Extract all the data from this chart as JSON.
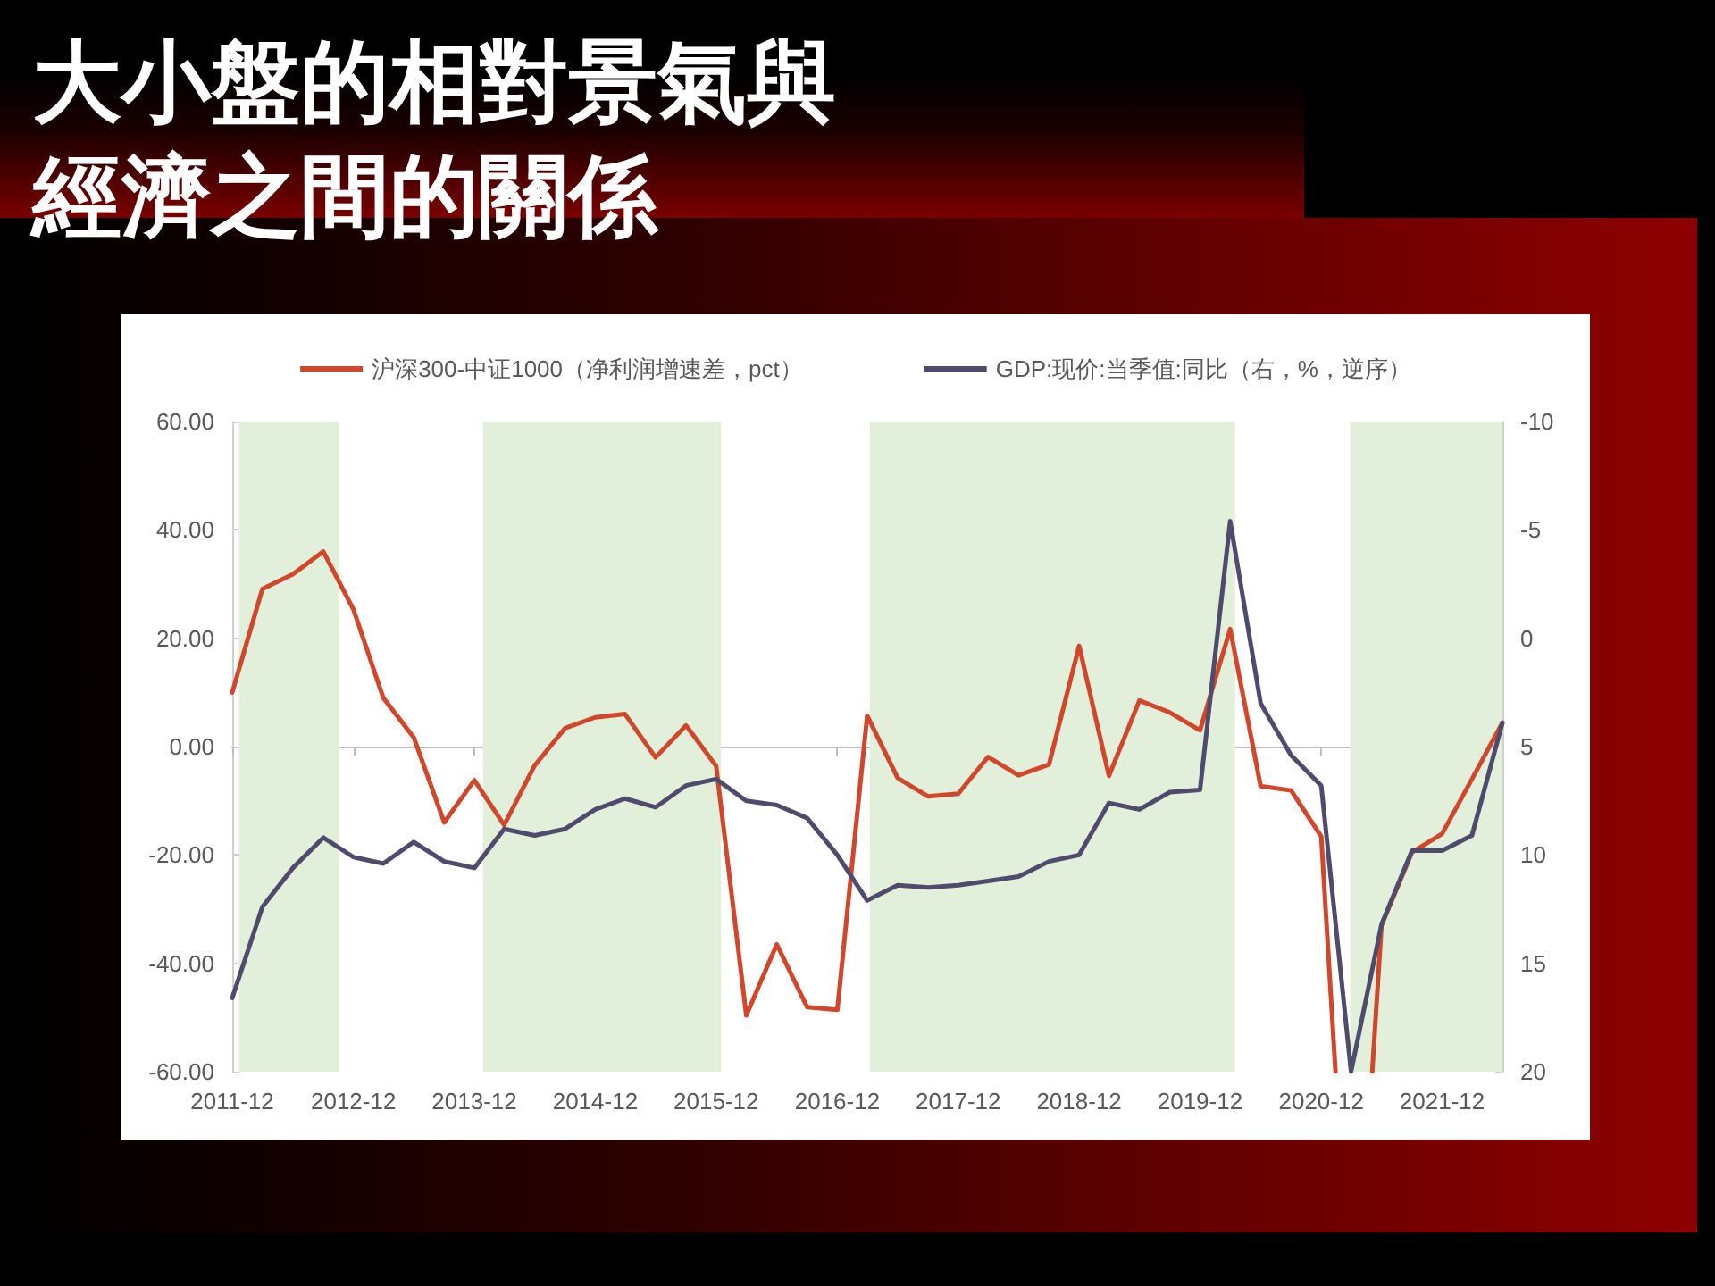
{
  "chart_data": {
    "type": "line",
    "title": "大小盤的相對景氣與經濟之間的關係",
    "x": [
      "2011-12",
      "2012-03",
      "2012-06",
      "2012-09",
      "2012-12",
      "2013-03",
      "2013-06",
      "2013-09",
      "2013-12",
      "2014-03",
      "2014-06",
      "2014-09",
      "2014-12",
      "2015-03",
      "2015-06",
      "2015-09",
      "2015-12",
      "2016-03",
      "2016-06",
      "2016-09",
      "2016-12",
      "2017-03",
      "2017-06",
      "2017-09",
      "2017-12",
      "2018-03",
      "2018-06",
      "2018-09",
      "2018-12",
      "2019-03",
      "2019-06",
      "2019-09",
      "2019-12",
      "2020-03",
      "2020-06",
      "2020-09",
      "2020-12",
      "2021-03",
      "2021-06",
      "2021-09",
      "2021-12",
      "2022-03",
      "2022-06"
    ],
    "xlim": [
      "2011-12",
      "2022-06"
    ],
    "xticks": [
      "2011-12",
      "2012-12",
      "2013-12",
      "2014-12",
      "2015-12",
      "2016-12",
      "2017-12",
      "2018-12",
      "2019-12",
      "2020-12",
      "2021-12"
    ],
    "ylim": [
      -60,
      60
    ],
    "yticks": [
      {
        "value": -60,
        "label": "-60.00"
      },
      {
        "value": -40,
        "label": "-40.00"
      },
      {
        "value": -20,
        "label": "-20.00"
      },
      {
        "value": 0,
        "label": "0.00"
      },
      {
        "value": 20,
        "label": "20.00"
      },
      {
        "value": 40,
        "label": "40.00"
      },
      {
        "value": 60,
        "label": "60.00"
      }
    ],
    "y2lim": [
      20,
      -10
    ],
    "y2ticks": [
      -10,
      -5,
      0,
      5,
      10,
      15,
      20
    ],
    "series": [
      {
        "name": "沪深300-中证1000（净利润增速差，pct）",
        "color": "#d0472b",
        "x": [
          "2011-12",
          "2012-03",
          "2012-06",
          "2012-09",
          "2012-12",
          "2013-03",
          "2013-06",
          "2013-09",
          "2013-12",
          "2014-03",
          "2014-06",
          "2014-09",
          "2014-12",
          "2015-03",
          "2015-06",
          "2015-09",
          "2015-12",
          "2016-03",
          "2016-06",
          "2016-09",
          "2016-12",
          "2017-03",
          "2017-06",
          "2017-09",
          "2017-12",
          "2018-03",
          "2018-06",
          "2018-09",
          "2018-12",
          "2019-03",
          "2019-06",
          "2019-09",
          "2019-12",
          "2020-03",
          "2020-06",
          "2020-09",
          "2020-12",
          "2021-01-13",
          "2021-03",
          "2021-05-04",
          "2021-06",
          "2021-09",
          "2021-12",
          "2022-03",
          "2022-06"
        ],
        "values": [
          10,
          29.1,
          31.8,
          36,
          25.3,
          9,
          1.7,
          -14,
          -6.2,
          -14.5,
          -3.5,
          3.4,
          5.4,
          6,
          -2,
          3.9,
          -3.6,
          -49.6,
          -36.5,
          -48.1,
          -48.6,
          5.7,
          -5.8,
          -9.2,
          -8.7,
          -1.9,
          -5.3,
          -3.3,
          18.6,
          -5.4,
          8.5,
          6.3,
          3,
          21.7,
          -7.3,
          -8.1,
          -16.6,
          -60,
          null,
          -60,
          -33,
          -19.5,
          -16.1,
          -6,
          4.4
        ]
      },
      {
        "name": "GDP:现价:当季值:同比（右，%，逆序）",
        "color": "#4e4b6c",
        "axis": "y2",
        "values": [
          16.6,
          12.4,
          10.6,
          9.2,
          10.1,
          10.4,
          9.4,
          10.3,
          10.6,
          8.8,
          9.1,
          8.8,
          7.9,
          7.4,
          7.8,
          6.8,
          6.5,
          7.5,
          7.7,
          8.3,
          10.0,
          12.1,
          11.4,
          11.5,
          11.4,
          11.2,
          11.0,
          10.3,
          10.0,
          7.6,
          7.9,
          7.1,
          7.0,
          -5.4,
          3.0,
          5.4,
          6.8,
          20,
          13.2,
          9.8,
          9.8,
          9.1,
          3.9
        ]
      }
    ],
    "bands": [
      {
        "axis": "x",
        "from": "2011-12-21",
        "to": "2012-10-18",
        "color": "#e2efda"
      },
      {
        "axis": "x",
        "from": "2013-12-27",
        "to": "2015-12-16",
        "color": "#e2efda"
      },
      {
        "axis": "x",
        "from": "2017-03-09",
        "to": "2020-03-16",
        "color": "#e2efda"
      },
      {
        "axis": "x",
        "from": "2021-02-26",
        "to": "2022-06",
        "color": "#e2efda"
      }
    ],
    "legend": "top",
    "marker": "none"
  }
}
